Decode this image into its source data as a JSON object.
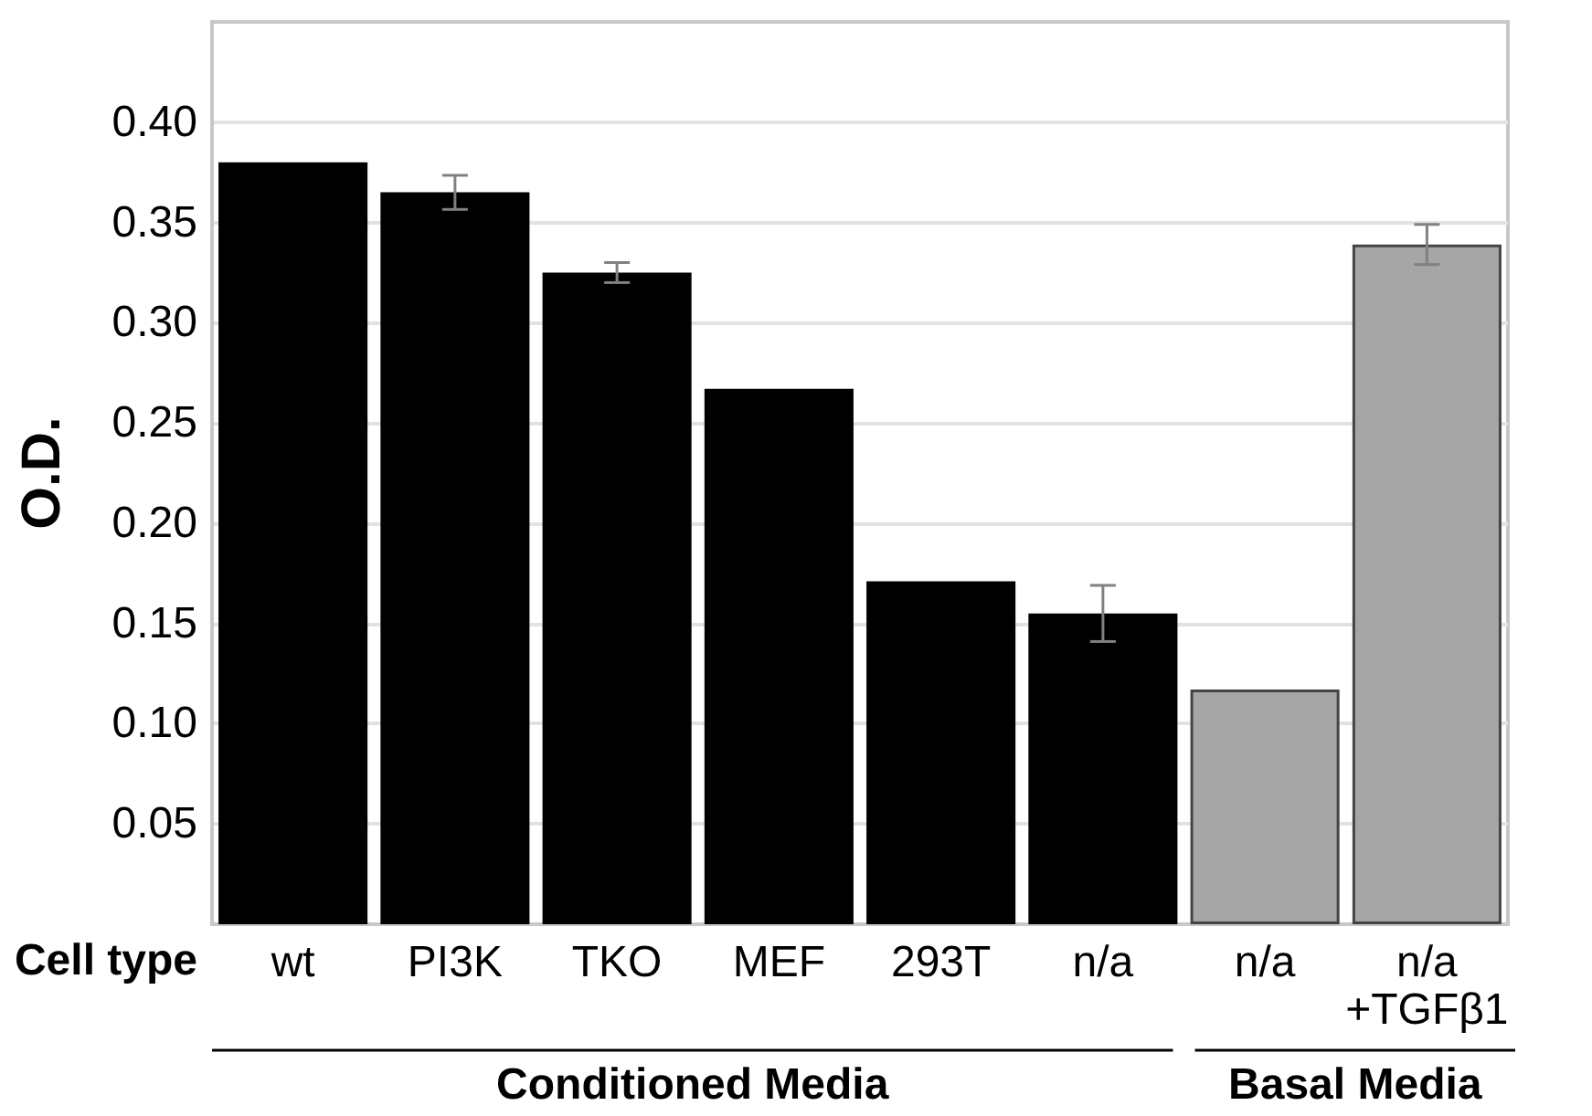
{
  "chart_data": {
    "type": "bar",
    "ylabel": "O.D.",
    "xlabel": "Cell type",
    "categories": [
      "wt",
      "PI3K",
      "TKO",
      "MEF",
      "293T",
      "n/a",
      "n/a",
      "n/a\n+TGFβ1"
    ],
    "values": [
      0.38,
      0.365,
      0.325,
      0.267,
      0.171,
      0.155,
      0.117,
      0.339
    ],
    "errors": [
      null,
      0.0085,
      0.005,
      null,
      null,
      0.014,
      null,
      0.01
    ],
    "colors": [
      "#000000",
      "#000000",
      "#000000",
      "#000000",
      "#000000",
      "#000000",
      "#a6a6a6",
      "#a6a6a6"
    ],
    "ylim": [
      0,
      0.45
    ],
    "yticks": [
      0.05,
      {
        "value": 0.1,
        "label": "0.10"
      },
      0.15,
      {
        "value": 0.2,
        "label": "0.20"
      },
      0.25,
      {
        "value": 0.3,
        "label": "0.30"
      },
      0.35,
      {
        "value": 0.4,
        "label": "0.40"
      }
    ],
    "grid": "y",
    "annotations": [
      "Conditioned Media",
      "Basal Media"
    ]
  }
}
